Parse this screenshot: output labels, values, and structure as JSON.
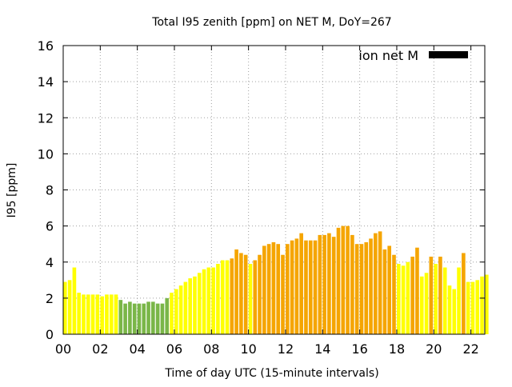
{
  "chart_data": {
    "type": "bar",
    "title": "Total I95 zenith [ppm] on NET M, DoY=267",
    "xlabel": "Time of day UTC (15-minute intervals)",
    "ylabel": "I95 [ppm]",
    "xlim": [
      0,
      22.75
    ],
    "ylim": [
      0,
      16
    ],
    "x_ticks": [
      "00",
      "02",
      "04",
      "06",
      "08",
      "10",
      "12",
      "14",
      "16",
      "18",
      "20",
      "22"
    ],
    "y_ticks": [
      "0",
      "2",
      "4",
      "6",
      "8",
      "10",
      "12",
      "14",
      "16"
    ],
    "grid": true,
    "legend": {
      "placement": "top-right",
      "entries": [
        {
          "label": "ion net M",
          "color": "#000000"
        }
      ]
    },
    "colors": {
      "green": "#7ab648",
      "yellow": "#ffff00",
      "orange": "#f5a500"
    },
    "interval_hours": 0.25,
    "start_hour": 0,
    "values": [
      2.9,
      3.0,
      3.7,
      2.3,
      2.2,
      2.2,
      2.2,
      2.2,
      2.1,
      2.2,
      2.2,
      2.2,
      1.9,
      1.7,
      1.8,
      1.7,
      1.7,
      1.7,
      1.8,
      1.8,
      1.7,
      1.7,
      2.0,
      2.3,
      2.5,
      2.7,
      2.9,
      3.1,
      3.2,
      3.4,
      3.6,
      3.7,
      3.7,
      3.9,
      4.1,
      4.1,
      4.2,
      4.7,
      4.5,
      4.4,
      3.9,
      4.1,
      4.4,
      4.9,
      5.0,
      5.1,
      5.0,
      4.4,
      5.0,
      5.2,
      5.3,
      5.6,
      5.2,
      5.2,
      5.2,
      5.5,
      5.5,
      5.6,
      5.4,
      5.9,
      6.0,
      6.0,
      5.5,
      5.0,
      5.0,
      5.1,
      5.3,
      5.6,
      5.7,
      4.7,
      4.9,
      4.4,
      3.9,
      3.8,
      4.0,
      4.3,
      4.8,
      3.2,
      3.4,
      4.3,
      3.9,
      4.3,
      3.7,
      2.7,
      2.5,
      3.7,
      4.5,
      2.9,
      2.9,
      3.0,
      3.2,
      3.3
    ],
    "color_classes": [
      "yellow",
      "yellow",
      "yellow",
      "yellow",
      "yellow",
      "yellow",
      "yellow",
      "yellow",
      "yellow",
      "yellow",
      "yellow",
      "yellow",
      "green",
      "green",
      "green",
      "green",
      "green",
      "green",
      "green",
      "green",
      "green",
      "green",
      "green",
      "yellow",
      "yellow",
      "yellow",
      "yellow",
      "yellow",
      "yellow",
      "yellow",
      "yellow",
      "yellow",
      "yellow",
      "yellow",
      "yellow",
      "yellow",
      "orange",
      "orange",
      "orange",
      "orange",
      "yellow",
      "orange",
      "orange",
      "orange",
      "orange",
      "orange",
      "orange",
      "orange",
      "orange",
      "orange",
      "orange",
      "orange",
      "orange",
      "orange",
      "orange",
      "orange",
      "orange",
      "orange",
      "orange",
      "orange",
      "orange",
      "orange",
      "orange",
      "orange",
      "orange",
      "orange",
      "orange",
      "orange",
      "orange",
      "orange",
      "orange",
      "orange",
      "yellow",
      "yellow",
      "yellow",
      "orange",
      "orange",
      "yellow",
      "yellow",
      "orange",
      "yellow",
      "orange",
      "yellow",
      "yellow",
      "yellow",
      "yellow",
      "orange",
      "yellow",
      "yellow",
      "yellow",
      "yellow",
      "yellow"
    ]
  }
}
